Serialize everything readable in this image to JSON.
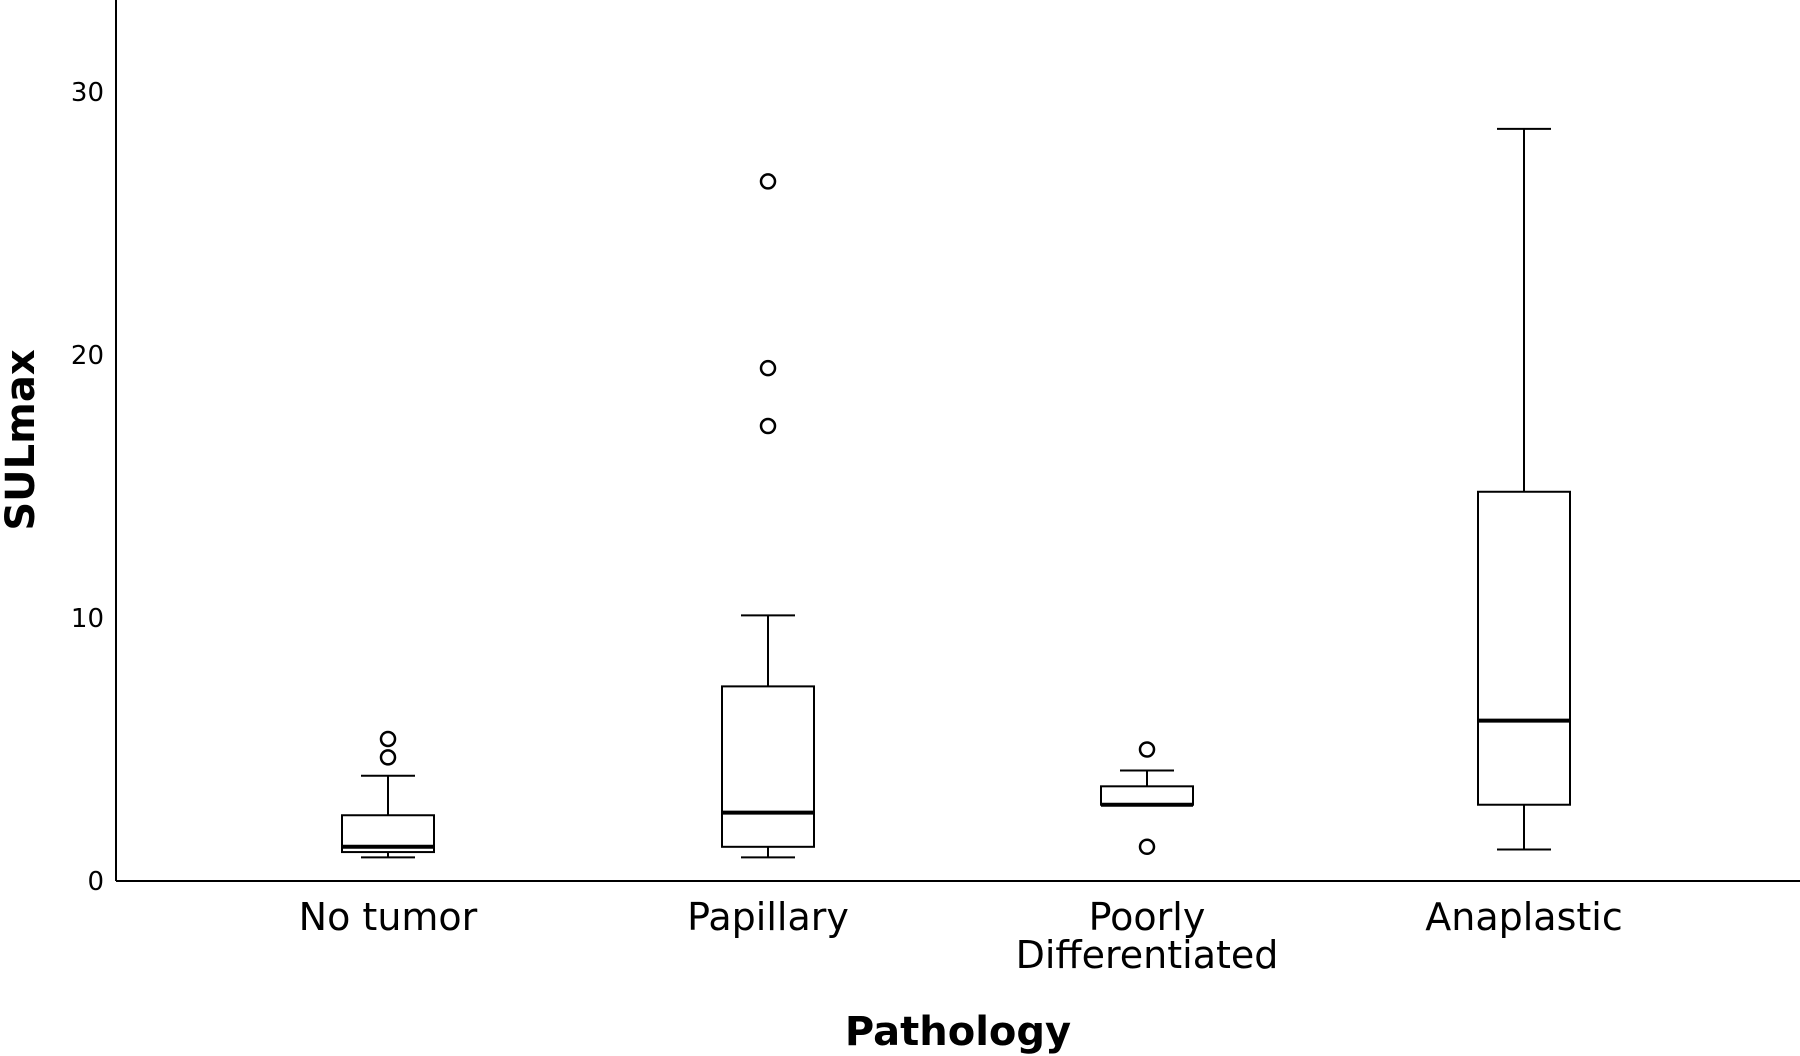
{
  "chart_data": {
    "type": "box",
    "xlabel": "Pathology",
    "ylabel": "SULmax",
    "ylim": [
      0,
      34
    ],
    "yticks": [
      "0",
      "10",
      "20",
      "30"
    ],
    "grid": false,
    "categories": [
      {
        "label_lines": [
          "No tumor"
        ],
        "min": 0.9,
        "q1": 1.1,
        "median": 1.3,
        "q3": 2.5,
        "max": 4.0,
        "outliers": [
          4.7,
          5.4
        ]
      },
      {
        "label_lines": [
          "Papillary"
        ],
        "min": 0.9,
        "q1": 1.3,
        "median": 2.6,
        "q3": 7.4,
        "max": 10.1,
        "outliers": [
          17.3,
          19.5,
          26.6
        ]
      },
      {
        "label_lines": [
          "Poorly",
          "Differentiated"
        ],
        "min": 2.9,
        "q1": 2.9,
        "median": 2.9,
        "q3": 3.6,
        "max": 4.2,
        "outliers": [
          1.3,
          5.0
        ]
      },
      {
        "label_lines": [
          "Anaplastic"
        ],
        "min": 1.2,
        "q1": 2.9,
        "median": 6.1,
        "q3": 14.8,
        "max": 28.6,
        "outliers": []
      }
    ]
  }
}
